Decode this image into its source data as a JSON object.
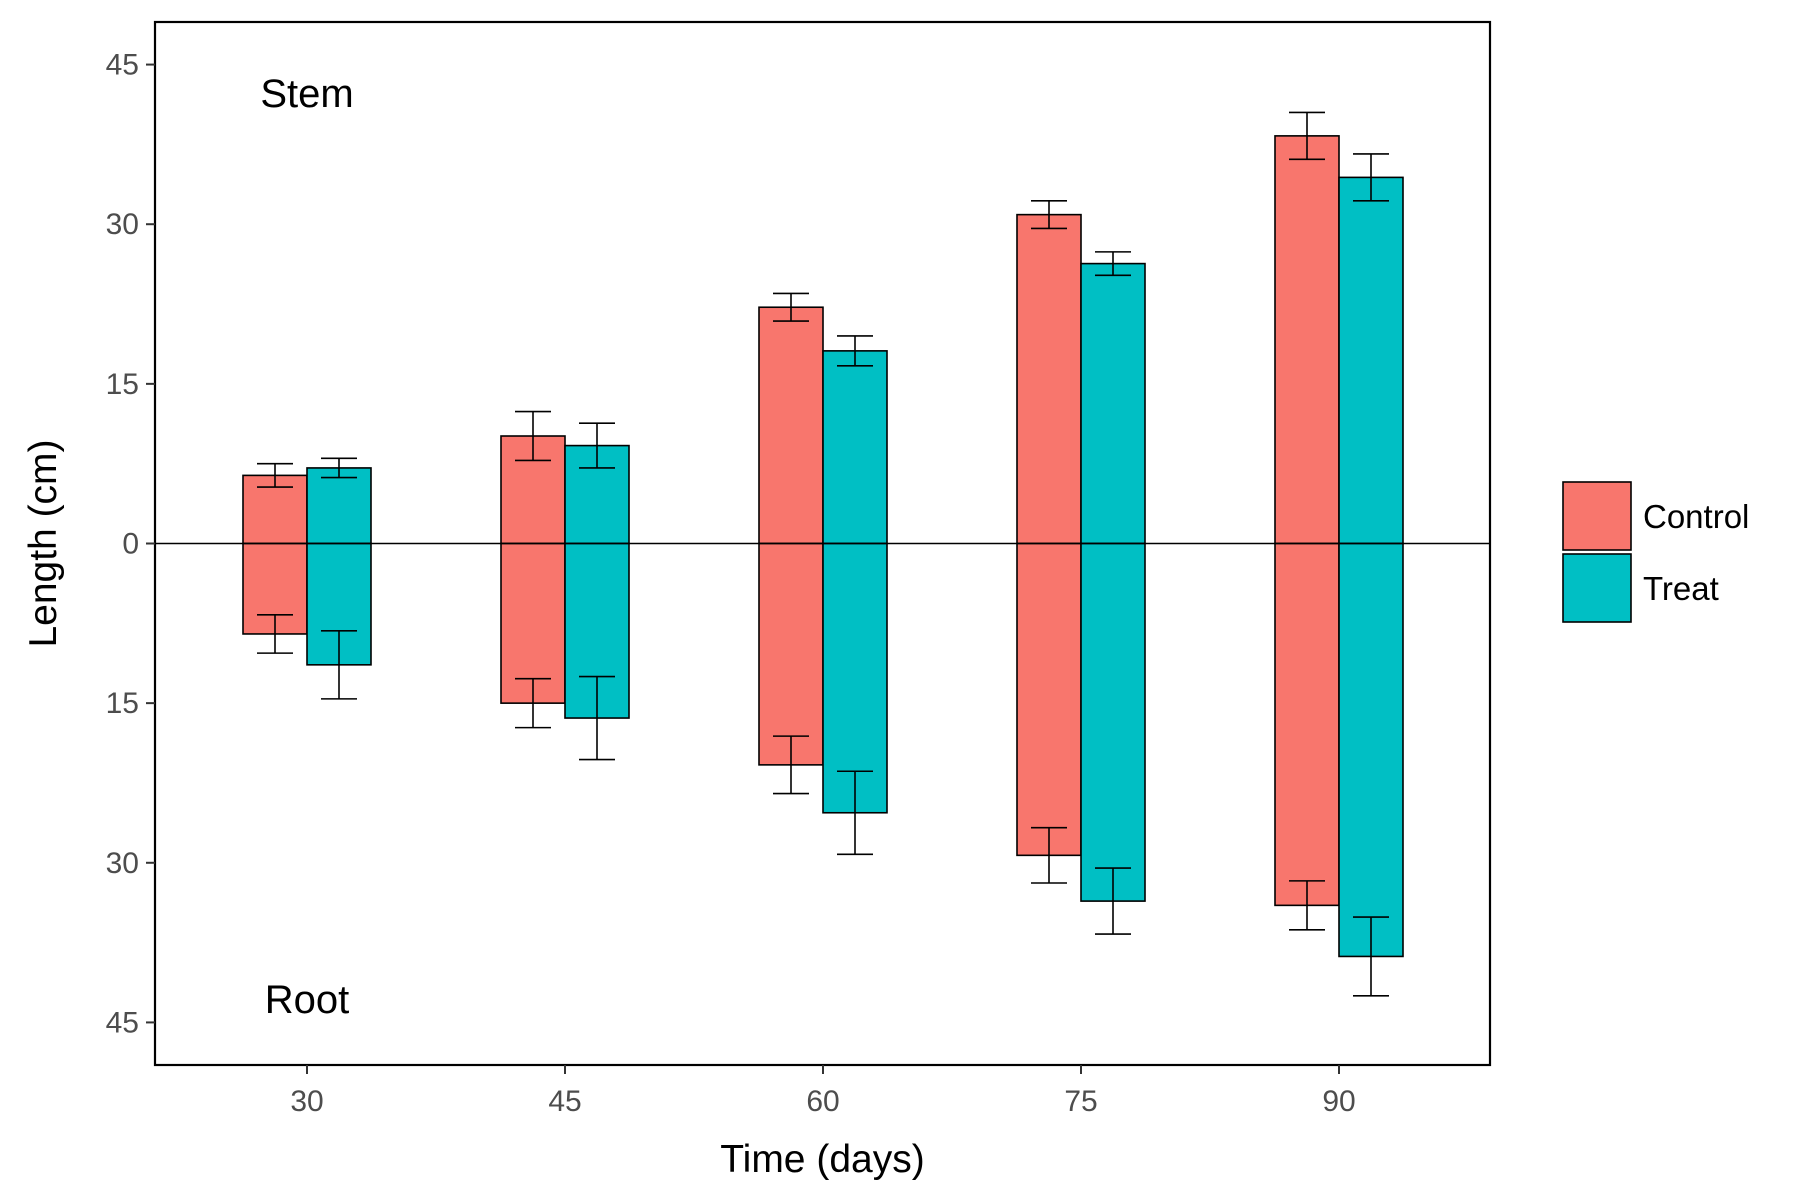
{
  "chart_data": {
    "type": "bar",
    "title": "",
    "xlabel": "Time (days)",
    "ylabel": "Length (cm)",
    "categories": [
      "30",
      "45",
      "60",
      "75",
      "90"
    ],
    "yticks": [
      45,
      30,
      15,
      0,
      -15,
      -30,
      -45
    ],
    "ytick_labels": [
      "45",
      "30",
      "15",
      "0",
      "15",
      "30",
      "45"
    ],
    "ylim": [
      -49,
      49
    ],
    "grid": false,
    "legend_position": "right",
    "annotations": {
      "top": "Stem",
      "bottom": "Root"
    },
    "colors": {
      "Control": "#f8766d",
      "Treat": "#00bfc4"
    },
    "series": [
      {
        "name": "Control",
        "stem": [
          6.4,
          10.1,
          22.2,
          30.9,
          38.3
        ],
        "stem_err": [
          1.1,
          2.3,
          1.3,
          1.3,
          2.2
        ],
        "root": [
          -8.5,
          -15.0,
          -20.8,
          -29.3,
          -34.0
        ],
        "root_err": [
          1.8,
          2.3,
          2.7,
          2.6,
          2.3
        ]
      },
      {
        "name": "Treat",
        "stem": [
          7.1,
          9.2,
          18.1,
          26.3,
          34.4
        ],
        "stem_err": [
          0.9,
          2.1,
          1.4,
          1.1,
          2.2
        ],
        "root": [
          -11.4,
          -16.4,
          -25.3,
          -33.6,
          -38.8
        ],
        "root_err": [
          3.2,
          3.9,
          3.9,
          3.1,
          3.7
        ]
      }
    ]
  }
}
